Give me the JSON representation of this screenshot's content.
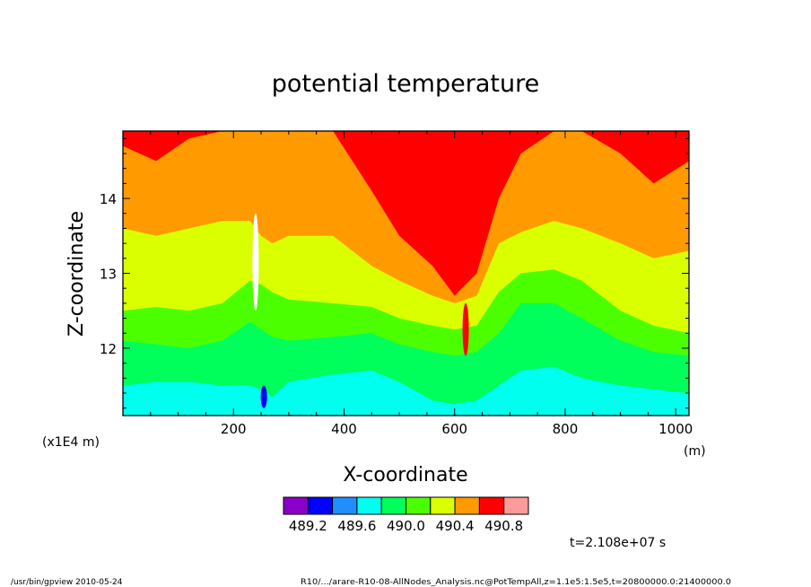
{
  "chart_data": {
    "type": "heatmap",
    "title": "potential temperature",
    "xlabel": "X-coordinate",
    "ylabel": "Z-coordinate",
    "x_units": "(m)",
    "y_scale_note": "(x1E4 m)",
    "xlim": [
      0,
      1024
    ],
    "ylim": [
      11.1,
      14.9
    ],
    "x_ticks": [
      200,
      400,
      600,
      800,
      1000
    ],
    "y_ticks": [
      12,
      13,
      14
    ],
    "x_tick_labels": [
      "200",
      "400",
      "600",
      "800",
      "1000"
    ],
    "y_tick_labels": [
      "12",
      "13",
      "14"
    ],
    "colorbar": {
      "levels": [
        489.0,
        489.2,
        489.4,
        489.6,
        489.8,
        490.0,
        490.2,
        490.4,
        490.6,
        490.8,
        491.0
      ],
      "colors": [
        "#8b00c8",
        "#0000ff",
        "#1f8fff",
        "#00ffef",
        "#00ff5a",
        "#4cff00",
        "#d9ff00",
        "#ff9a00",
        "#ff0000",
        "#ff9a9a"
      ],
      "labels": [
        "489.2",
        "489.6",
        "490.0",
        "490.4",
        "490.8"
      ],
      "label_levels": [
        489.2,
        489.6,
        490.0,
        490.4,
        490.8
      ]
    },
    "profile_x": [
      0,
      60,
      120,
      180,
      230,
      250,
      270,
      300,
      380,
      450,
      500,
      560,
      600,
      640,
      680,
      720,
      780,
      830,
      900,
      960,
      1024
    ],
    "boundaries": [
      {
        "above_color": "#00ff5a",
        "z": [
          11.5,
          11.55,
          11.55,
          11.5,
          11.5,
          11.45,
          11.35,
          11.55,
          11.65,
          11.7,
          11.55,
          11.3,
          11.25,
          11.3,
          11.5,
          11.7,
          11.75,
          11.6,
          11.5,
          11.45,
          11.4
        ]
      },
      {
        "above_color": "#4cff00",
        "z": [
          12.1,
          12.05,
          12.0,
          12.1,
          12.35,
          12.25,
          12.15,
          12.1,
          12.15,
          12.2,
          12.05,
          11.95,
          11.9,
          11.95,
          12.2,
          12.6,
          12.6,
          12.4,
          12.1,
          11.95,
          11.9
        ]
      },
      {
        "above_color": "#d9ff00",
        "z": [
          12.5,
          12.55,
          12.5,
          12.6,
          12.9,
          12.85,
          12.75,
          12.65,
          12.6,
          12.55,
          12.4,
          12.3,
          12.25,
          12.3,
          12.75,
          13.0,
          13.05,
          12.9,
          12.5,
          12.3,
          12.2
        ]
      },
      {
        "above_color": "#ff9a00",
        "z": [
          13.6,
          13.5,
          13.6,
          13.7,
          13.7,
          13.5,
          13.4,
          13.5,
          13.5,
          13.1,
          12.9,
          12.7,
          12.6,
          12.7,
          13.4,
          13.55,
          13.7,
          13.6,
          13.4,
          13.2,
          13.3
        ]
      },
      {
        "above_color": "#ff0000",
        "z": [
          14.7,
          14.5,
          14.8,
          14.9,
          14.9,
          14.9,
          14.9,
          14.9,
          14.9,
          14.1,
          13.5,
          13.1,
          12.7,
          13.0,
          14.0,
          14.6,
          14.9,
          14.9,
          14.6,
          14.2,
          14.5
        ]
      }
    ],
    "features": [
      {
        "kind": "streak",
        "x": 240,
        "z": [
          12.5,
          13.8
        ],
        "color": "#ffffff"
      },
      {
        "kind": "streak",
        "x": 255,
        "z": [
          11.2,
          11.5
        ],
        "color": "#0000ff"
      },
      {
        "kind": "streak",
        "x": 620,
        "z": [
          11.9,
          12.6
        ],
        "color": "#ff0000"
      }
    ]
  },
  "footer": {
    "time_label": "t=2.108e+07 s",
    "left_text": "/usr/bin/gpview   2010-05-24",
    "right_text": "R10/.../arare-R10-08-AllNodes_Analysis.nc@PotTempAll,z=1.1e5:1.5e5,t=20800000.0:21400000.0"
  }
}
